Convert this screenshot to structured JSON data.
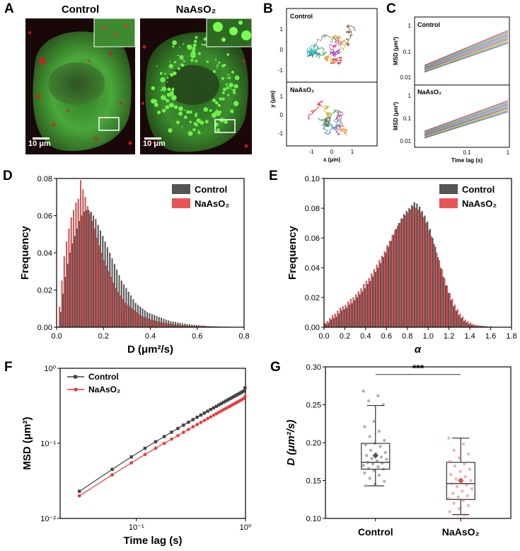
{
  "panel_letters": [
    "A",
    "B",
    "C",
    "D",
    "E",
    "F",
    "G"
  ],
  "panelA": {
    "titles": [
      "Control",
      "NaAsO₂"
    ],
    "scalebar_label": "10 μm",
    "colors": {
      "green": "#3bbf2a",
      "red": "#d11d1d",
      "background": "#1a0808"
    }
  },
  "panelB": {
    "top_label": "Control",
    "bottom_label": "NaAsO₂",
    "xlabel": "x (μm)",
    "ylabel": "y (μm)",
    "xticks": [
      "-1",
      "0",
      "1"
    ],
    "yticks": [
      "1",
      "0",
      "-1"
    ]
  },
  "panelC": {
    "top_label": "Control",
    "bottom_label": "NaAsO₂",
    "ylabel": "MSD (μm²)",
    "xlabel": "Time lag (s)",
    "yticks": [
      "1",
      "0.1",
      "0.01"
    ],
    "xticks": [
      "0.1",
      "1"
    ]
  },
  "chart_data": [
    {
      "id": "D",
      "type": "bar",
      "xlabel": "D (μm²/s)",
      "ylabel": "Frequency",
      "xlim": [
        0,
        0.8
      ],
      "ylim": [
        0,
        0.08
      ],
      "xticks": [
        "0.0",
        "0.2",
        "0.4",
        "0.6",
        "0.8"
      ],
      "yticks": [
        "0.00",
        "0.02",
        "0.04",
        "0.06",
        "0.08"
      ],
      "legend_position": "top-right",
      "bin_width": 0.01,
      "x_start": 0.0,
      "series": [
        {
          "name": "Control",
          "color": "#555555",
          "values": [
            0.0,
            0.008,
            0.018,
            0.027,
            0.034,
            0.04,
            0.045,
            0.049,
            0.053,
            0.057,
            0.06,
            0.062,
            0.063,
            0.063,
            0.062,
            0.06,
            0.058,
            0.055,
            0.052,
            0.049,
            0.046,
            0.043,
            0.04,
            0.037,
            0.034,
            0.031,
            0.028,
            0.025,
            0.023,
            0.021,
            0.019,
            0.017,
            0.015,
            0.013,
            0.012,
            0.011,
            0.01,
            0.009,
            0.008,
            0.0075,
            0.007,
            0.0065,
            0.006,
            0.0055,
            0.005,
            0.0045,
            0.004,
            0.0036,
            0.0032,
            0.003,
            0.0028,
            0.0025,
            0.0022,
            0.002,
            0.0018,
            0.0016,
            0.0015,
            0.0013,
            0.0012,
            0.0011,
            0.001,
            0.0009,
            0.0008,
            0.0007,
            0.0006,
            0.0005,
            0.0005,
            0.0004,
            0.0004,
            0.0003,
            0.0003,
            0.0003,
            0.0002,
            0.0002,
            0.0002,
            0.0001,
            0.0001,
            0.0001,
            0.0001,
            0.0001
          ]
        },
        {
          "name": "NaAsO₂",
          "color": "#e85454",
          "values": [
            0.0,
            0.011,
            0.025,
            0.038,
            0.046,
            0.053,
            0.059,
            0.063,
            0.067,
            0.069,
            0.079,
            0.074,
            0.07,
            0.065,
            0.061,
            0.057,
            0.053,
            0.048,
            0.044,
            0.04,
            0.036,
            0.033,
            0.03,
            0.027,
            0.024,
            0.021,
            0.019,
            0.017,
            0.015,
            0.013,
            0.012,
            0.011,
            0.01,
            0.009,
            0.008,
            0.007,
            0.006,
            0.0055,
            0.005,
            0.0045,
            0.004,
            0.0037,
            0.0034,
            0.003,
            0.0027,
            0.0024,
            0.0022,
            0.002,
            0.0018,
            0.0016,
            0.0014,
            0.0013,
            0.0012,
            0.001,
            0.0009,
            0.0008,
            0.0007,
            0.0006,
            0.0006,
            0.0005,
            0.0005,
            0.0004,
            0.0004,
            0.0003,
            0.0003,
            0.0003,
            0.0002,
            0.0002,
            0.0002,
            0.0002,
            0.0001,
            0.0001,
            0.0001,
            0.0001,
            0.0001,
            0.0001,
            0.0001,
            0.0,
            0.0,
            0.0
          ]
        }
      ]
    },
    {
      "id": "E",
      "type": "bar",
      "xlabel": "α",
      "ylabel": "Frequency",
      "xlim": [
        0,
        1.8
      ],
      "ylim": [
        0,
        0.1
      ],
      "xticks": [
        "0.0",
        "0.2",
        "0.4",
        "0.6",
        "0.8",
        "1.0",
        "1.2",
        "1.4",
        "1.6",
        "1.8"
      ],
      "yticks": [
        "0.00",
        "0.02",
        "0.04",
        "0.06",
        "0.08",
        "0.10"
      ],
      "legend_position": "top-right",
      "bin_width": 0.025,
      "x_start": 0.0,
      "series": [
        {
          "name": "Control",
          "color": "#555555",
          "values": [
            0.002,
            0.003,
            0.005,
            0.006,
            0.007,
            0.009,
            0.011,
            0.012,
            0.013,
            0.015,
            0.016,
            0.018,
            0.02,
            0.022,
            0.024,
            0.026,
            0.029,
            0.031,
            0.034,
            0.037,
            0.04,
            0.043,
            0.047,
            0.05,
            0.054,
            0.058,
            0.062,
            0.066,
            0.07,
            0.073,
            0.076,
            0.078,
            0.08,
            0.082,
            0.084,
            0.083,
            0.081,
            0.078,
            0.075,
            0.071,
            0.066,
            0.06,
            0.054,
            0.047,
            0.04,
            0.034,
            0.028,
            0.023,
            0.018,
            0.014,
            0.011,
            0.008,
            0.006,
            0.004,
            0.003,
            0.002,
            0.0015,
            0.001,
            0.0008,
            0.0006,
            0.0005,
            0.0004,
            0.0003,
            0.0002,
            0.0002,
            0.0001,
            0.0001,
            0.0001,
            0.0001,
            0.0001,
            0.0001,
            0.0
          ]
        },
        {
          "name": "NaAsO₂",
          "color": "#e85454",
          "values": [
            0.003,
            0.004,
            0.006,
            0.008,
            0.009,
            0.011,
            0.013,
            0.014,
            0.015,
            0.017,
            0.019,
            0.02,
            0.022,
            0.024,
            0.026,
            0.029,
            0.031,
            0.033,
            0.036,
            0.039,
            0.042,
            0.045,
            0.048,
            0.051,
            0.055,
            0.058,
            0.062,
            0.065,
            0.068,
            0.07,
            0.073,
            0.075,
            0.077,
            0.079,
            0.081,
            0.08,
            0.079,
            0.077,
            0.074,
            0.07,
            0.065,
            0.061,
            0.056,
            0.05,
            0.045,
            0.039,
            0.033,
            0.028,
            0.023,
            0.019,
            0.015,
            0.012,
            0.009,
            0.007,
            0.005,
            0.004,
            0.003,
            0.002,
            0.0016,
            0.0012,
            0.001,
            0.0008,
            0.0006,
            0.0004,
            0.0003,
            0.0002,
            0.0002,
            0.0001,
            0.0001,
            0.0001,
            0.0001,
            0.0
          ]
        }
      ]
    },
    {
      "id": "F",
      "type": "line",
      "xlabel": "Time lag (s)",
      "ylabel": "MSD (μm²)",
      "xscale": "log",
      "yscale": "log",
      "xlim": [
        0.02,
        1.0
      ],
      "ylim": [
        0.01,
        1.0
      ],
      "xticks": [
        "10⁻¹",
        "10⁰"
      ],
      "yticks": [
        "10⁻²",
        "10⁻¹",
        "10⁰"
      ],
      "legend_position": "top-left",
      "x": [
        0.03,
        0.06,
        0.09,
        0.12,
        0.15,
        0.18,
        0.21,
        0.24,
        0.27,
        0.3,
        0.33,
        0.36,
        0.39,
        0.42,
        0.45,
        0.48,
        0.51,
        0.54,
        0.57,
        0.6,
        0.63,
        0.66,
        0.69,
        0.72,
        0.75,
        0.78,
        0.81,
        0.84,
        0.87,
        0.9,
        0.93,
        0.96,
        0.99
      ],
      "series": [
        {
          "name": "Control",
          "color": "#444444",
          "marker": "square",
          "values": [
            0.023,
            0.045,
            0.066,
            0.086,
            0.105,
            0.123,
            0.141,
            0.158,
            0.175,
            0.191,
            0.207,
            0.223,
            0.238,
            0.253,
            0.268,
            0.283,
            0.297,
            0.311,
            0.325,
            0.339,
            0.353,
            0.366,
            0.38,
            0.393,
            0.406,
            0.419,
            0.432,
            0.445,
            0.458,
            0.47,
            0.483,
            0.495,
            0.55
          ]
        },
        {
          "name": "NaAsO₂",
          "color": "#e83a3a",
          "marker": "circle",
          "values": [
            0.02,
            0.038,
            0.055,
            0.071,
            0.086,
            0.1,
            0.114,
            0.127,
            0.14,
            0.153,
            0.166,
            0.178,
            0.19,
            0.202,
            0.214,
            0.225,
            0.237,
            0.248,
            0.259,
            0.27,
            0.281,
            0.292,
            0.302,
            0.313,
            0.323,
            0.333,
            0.344,
            0.354,
            0.364,
            0.374,
            0.384,
            0.394,
            0.42
          ]
        }
      ]
    },
    {
      "id": "G",
      "type": "box",
      "ylabel": "D (μm²/s)",
      "ylim": [
        0.1,
        0.3
      ],
      "yticks": [
        "0.10",
        "0.15",
        "0.20",
        "0.25",
        "0.30"
      ],
      "categories": [
        "Control",
        "NaAsO₂"
      ],
      "significance": "***",
      "boxes": [
        {
          "name": "Control",
          "color": "#555555",
          "whisker_low": 0.143,
          "q1": 0.165,
          "median": 0.174,
          "q3": 0.199,
          "whisker_high": 0.249,
          "mean": 0.183,
          "points": [
            0.268,
            0.262,
            0.255,
            0.25,
            0.228,
            0.221,
            0.215,
            0.208,
            0.203,
            0.199,
            0.197,
            0.195,
            0.19,
            0.187,
            0.185,
            0.183,
            0.181,
            0.179,
            0.178,
            0.176,
            0.174,
            0.173,
            0.172,
            0.17,
            0.168,
            0.166,
            0.165,
            0.163,
            0.16,
            0.157,
            0.153,
            0.149,
            0.145,
            0.143
          ]
        },
        {
          "name": "NaAsO₂",
          "color": "#e85454",
          "whisker_low": 0.105,
          "q1": 0.125,
          "median": 0.146,
          "q3": 0.174,
          "whisker_high": 0.206,
          "mean": 0.15,
          "points": [
            0.206,
            0.198,
            0.19,
            0.185,
            0.18,
            0.175,
            0.172,
            0.169,
            0.165,
            0.162,
            0.158,
            0.155,
            0.152,
            0.15,
            0.148,
            0.146,
            0.144,
            0.142,
            0.139,
            0.136,
            0.133,
            0.13,
            0.128,
            0.126,
            0.124,
            0.12,
            0.117,
            0.113,
            0.109,
            0.105
          ]
        }
      ]
    }
  ]
}
